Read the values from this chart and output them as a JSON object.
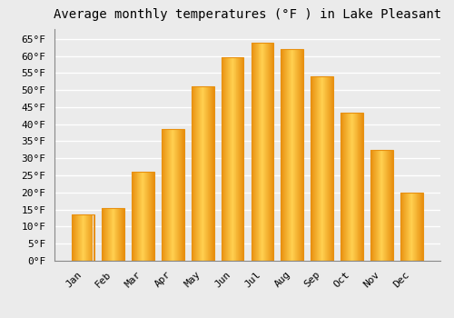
{
  "title": "Average monthly temperatures (°F ) in Lake Pleasant",
  "months": [
    "Jan",
    "Feb",
    "Mar",
    "Apr",
    "May",
    "Jun",
    "Jul",
    "Aug",
    "Sep",
    "Oct",
    "Nov",
    "Dec"
  ],
  "values": [
    13.5,
    15.5,
    26,
    38.5,
    51,
    59.5,
    64,
    62,
    54,
    43.5,
    32.5,
    20
  ],
  "bar_color_center": "#FFD050",
  "bar_color_edge": "#E89010",
  "ylim": [
    0,
    68
  ],
  "yticks": [
    0,
    5,
    10,
    15,
    20,
    25,
    30,
    35,
    40,
    45,
    50,
    55,
    60,
    65
  ],
  "ytick_labels": [
    "0°F",
    "5°F",
    "10°F",
    "15°F",
    "20°F",
    "25°F",
    "30°F",
    "35°F",
    "40°F",
    "45°F",
    "50°F",
    "55°F",
    "60°F",
    "65°F"
  ],
  "background_color": "#EBEBEB",
  "plot_bg_color": "#EBEBEB",
  "grid_color": "#FFFFFF",
  "title_fontsize": 10,
  "tick_fontsize": 8,
  "font_family": "monospace",
  "bar_width": 0.75
}
